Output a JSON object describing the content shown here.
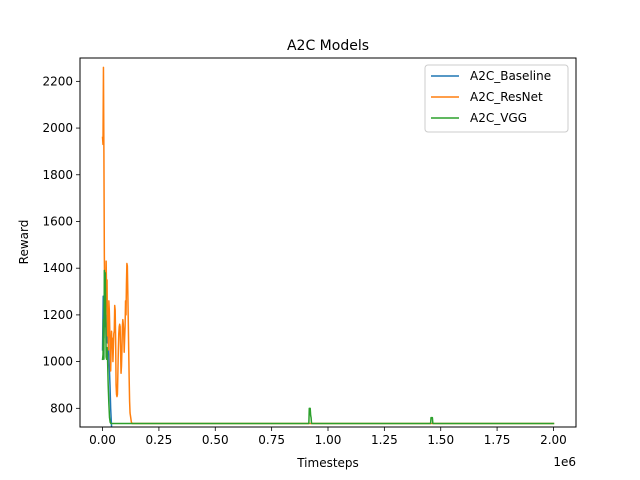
{
  "chart_data": {
    "type": "line",
    "title": "A2C Models",
    "xlabel": "Timesteps",
    "ylabel": "Reward",
    "x_offset_label": "1e6",
    "xlim": [
      -0.1,
      2.1
    ],
    "ylim": [
      720,
      2300
    ],
    "xticks": [
      0.0,
      0.25,
      0.5,
      0.75,
      1.0,
      1.25,
      1.5,
      1.75,
      2.0
    ],
    "xtick_labels": [
      "0.00",
      "0.25",
      "0.50",
      "0.75",
      "1.00",
      "1.25",
      "1.50",
      "1.75",
      "2.00"
    ],
    "yticks": [
      800,
      1000,
      1200,
      1400,
      1600,
      1800,
      2000,
      2200
    ],
    "ytick_labels": [
      "800",
      "1000",
      "1200",
      "1400",
      "1600",
      "1800",
      "2000",
      "2200"
    ],
    "grid": false,
    "legend_position": "top-right",
    "series": [
      {
        "name": "A2C_Baseline",
        "color": "#1f77b4",
        "points": [
          [
            0.0,
            1050
          ],
          [
            0.003,
            1280
          ],
          [
            0.006,
            1100
          ],
          [
            0.009,
            1230
          ],
          [
            0.012,
            1150
          ],
          [
            0.015,
            1200
          ],
          [
            0.018,
            1120
          ],
          [
            0.021,
            1080
          ],
          [
            0.024,
            1150
          ],
          [
            0.027,
            1040
          ],
          [
            0.03,
            980
          ],
          [
            0.033,
            900
          ],
          [
            0.036,
            800
          ],
          [
            0.04,
            720
          ],
          [
            0.045,
            680
          ],
          [
            0.1,
            680
          ],
          [
            0.5,
            680
          ],
          [
            1.0,
            680
          ],
          [
            1.5,
            680
          ],
          [
            2.0,
            680
          ]
        ]
      },
      {
        "name": "A2C_ResNet",
        "color": "#ff7f0e",
        "points": [
          [
            0.0,
            1960
          ],
          [
            0.002,
            1930
          ],
          [
            0.004,
            2260
          ],
          [
            0.006,
            1900
          ],
          [
            0.008,
            1450
          ],
          [
            0.01,
            1250
          ],
          [
            0.012,
            1380
          ],
          [
            0.014,
            1200
          ],
          [
            0.016,
            1430
          ],
          [
            0.018,
            1300
          ],
          [
            0.02,
            1350
          ],
          [
            0.022,
            1110
          ],
          [
            0.024,
            1180
          ],
          [
            0.026,
            1050
          ],
          [
            0.028,
            1260
          ],
          [
            0.03,
            1220
          ],
          [
            0.032,
            1140
          ],
          [
            0.034,
            1080
          ],
          [
            0.036,
            960
          ],
          [
            0.038,
            1050
          ],
          [
            0.04,
            1130
          ],
          [
            0.042,
            1060
          ],
          [
            0.044,
            1100
          ],
          [
            0.046,
            1000
          ],
          [
            0.048,
            1060
          ],
          [
            0.05,
            1120
          ],
          [
            0.052,
            1130
          ],
          [
            0.054,
            1240
          ],
          [
            0.056,
            1220
          ],
          [
            0.058,
            1100
          ],
          [
            0.06,
            900
          ],
          [
            0.062,
            860
          ],
          [
            0.064,
            850
          ],
          [
            0.066,
            860
          ],
          [
            0.068,
            950
          ],
          [
            0.07,
            1050
          ],
          [
            0.072,
            1120
          ],
          [
            0.074,
            1150
          ],
          [
            0.076,
            1160
          ],
          [
            0.078,
            1150
          ],
          [
            0.08,
            1050
          ],
          [
            0.082,
            950
          ],
          [
            0.084,
            980
          ],
          [
            0.086,
            1050
          ],
          [
            0.088,
            1150
          ],
          [
            0.09,
            1180
          ],
          [
            0.092,
            1160
          ],
          [
            0.094,
            1120
          ],
          [
            0.096,
            1040
          ],
          [
            0.098,
            1100
          ],
          [
            0.1,
            1150
          ],
          [
            0.102,
            1260
          ],
          [
            0.104,
            1200
          ],
          [
            0.106,
            1330
          ],
          [
            0.108,
            1420
          ],
          [
            0.11,
            1410
          ],
          [
            0.112,
            1300
          ],
          [
            0.114,
            1180
          ],
          [
            0.116,
            1050
          ],
          [
            0.118,
            930
          ],
          [
            0.12,
            830
          ],
          [
            0.122,
            780
          ],
          [
            0.125,
            760
          ],
          [
            0.128,
            740
          ],
          [
            0.132,
            735
          ],
          [
            0.2,
            735
          ],
          [
            0.5,
            735
          ],
          [
            1.0,
            735
          ],
          [
            1.5,
            735
          ],
          [
            2.0,
            735
          ]
        ]
      },
      {
        "name": "A2C_VGG",
        "color": "#2ca02c",
        "points": [
          [
            0.0,
            1010
          ],
          [
            0.002,
            1030
          ],
          [
            0.004,
            1180
          ],
          [
            0.006,
            1010
          ],
          [
            0.008,
            1390
          ],
          [
            0.01,
            1250
          ],
          [
            0.012,
            1380
          ],
          [
            0.014,
            1200
          ],
          [
            0.016,
            1020
          ],
          [
            0.018,
            1010
          ],
          [
            0.02,
            1060
          ],
          [
            0.022,
            1020
          ],
          [
            0.025,
            900
          ],
          [
            0.028,
            820
          ],
          [
            0.031,
            760
          ],
          [
            0.034,
            740
          ],
          [
            0.037,
            735
          ],
          [
            0.05,
            735
          ],
          [
            0.3,
            735
          ],
          [
            0.5,
            735
          ],
          [
            0.915,
            735
          ],
          [
            0.917,
            800
          ],
          [
            0.921,
            800
          ],
          [
            0.923,
            770
          ],
          [
            0.925,
            760
          ],
          [
            0.927,
            735
          ],
          [
            1.0,
            735
          ],
          [
            1.455,
            735
          ],
          [
            1.457,
            760
          ],
          [
            1.463,
            760
          ],
          [
            1.465,
            735
          ],
          [
            1.5,
            735
          ],
          [
            2.0,
            735
          ]
        ]
      }
    ]
  }
}
